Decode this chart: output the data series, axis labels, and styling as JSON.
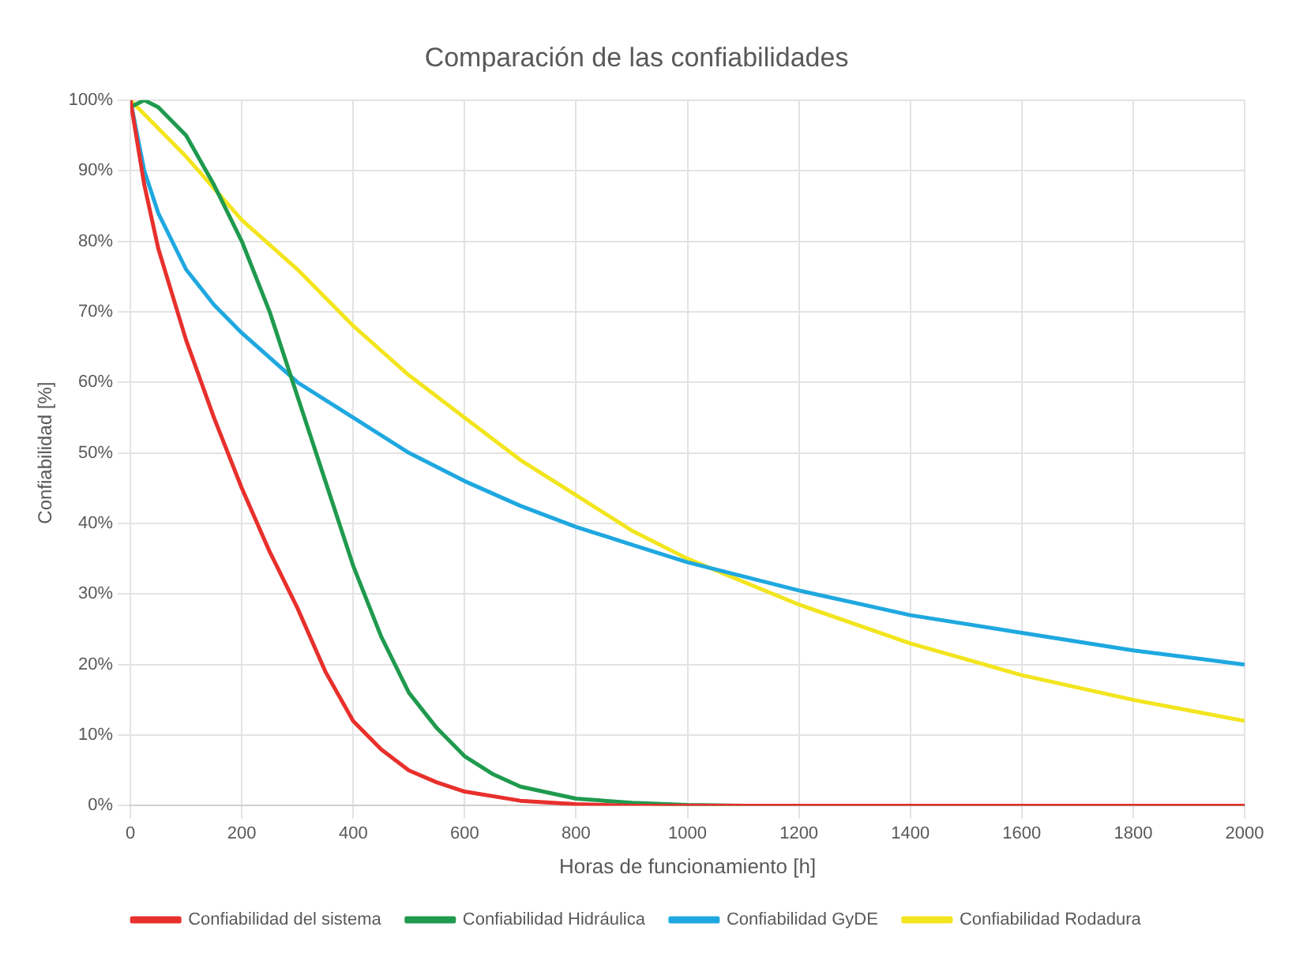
{
  "chart_data": {
    "type": "line",
    "title": "Comparación de las confiabilidades",
    "xlabel": "Horas de funcionamiento [h]",
    "ylabel": "Confiabilidad [%]",
    "xlim": [
      0,
      2000
    ],
    "xticks": [
      0,
      200,
      400,
      600,
      800,
      1000,
      1200,
      1400,
      1600,
      1800,
      2000
    ],
    "ylim": [
      0,
      100
    ],
    "yticks": [
      {
        "value": 0,
        "label": "0%"
      },
      {
        "value": 10,
        "label": "10%"
      },
      {
        "value": 20,
        "label": "20%"
      },
      {
        "value": 30,
        "label": "30%"
      },
      {
        "value": 40,
        "label": "40%"
      },
      {
        "value": 50,
        "label": "50%"
      },
      {
        "value": 60,
        "label": "60%"
      },
      {
        "value": 70,
        "label": "70%"
      },
      {
        "value": 80,
        "label": "80%"
      },
      {
        "value": 90,
        "label": "90%"
      },
      {
        "value": 100,
        "label": "100%"
      }
    ],
    "grid": true,
    "legend": "bottom",
    "marker": "none",
    "line_style": "solid",
    "series": [
      {
        "name": "Confiabilidad del sistema",
        "color": "#e8302c",
        "x": [
          0,
          25,
          50,
          100,
          150,
          200,
          250,
          300,
          350,
          400,
          450,
          500,
          550,
          600,
          700,
          800,
          900,
          2000
        ],
        "values": [
          100,
          88,
          79,
          66,
          55,
          45,
          36,
          28,
          19,
          12,
          8,
          5,
          3.3,
          2,
          0.7,
          0.2,
          0,
          0
        ]
      },
      {
        "name": "Confiabilidad Hidráulica",
        "color": "#1f9a4e",
        "x": [
          0,
          25,
          50,
          100,
          150,
          200,
          250,
          300,
          350,
          400,
          450,
          500,
          550,
          600,
          650,
          700,
          800,
          900,
          1000,
          1100,
          2000
        ],
        "values": [
          99,
          100,
          99,
          95,
          88,
          80,
          70,
          58,
          46,
          34,
          24,
          16,
          11,
          7,
          4.5,
          2.7,
          1,
          0.4,
          0.1,
          0,
          0
        ]
      },
      {
        "name": "Confiabilidad GyDE",
        "color": "#1fa8e0",
        "x": [
          0,
          25,
          50,
          100,
          150,
          200,
          300,
          400,
          500,
          600,
          700,
          800,
          900,
          1000,
          1200,
          1400,
          1600,
          1800,
          2000
        ],
        "values": [
          100,
          90,
          84,
          76,
          71,
          67,
          60,
          55,
          50,
          46,
          42.5,
          39.5,
          37,
          34.5,
          30.5,
          27,
          24.5,
          22,
          20
        ]
      },
      {
        "name": "Confiabilidad Rodadura",
        "color": "#f2e51f",
        "x": [
          0,
          100,
          200,
          300,
          400,
          500,
          600,
          700,
          800,
          900,
          1000,
          1200,
          1400,
          1600,
          1800,
          2000
        ],
        "values": [
          100,
          92,
          83,
          76,
          68,
          61,
          55,
          49,
          44,
          39,
          35,
          28.5,
          23,
          18.5,
          15,
          12
        ]
      }
    ]
  }
}
